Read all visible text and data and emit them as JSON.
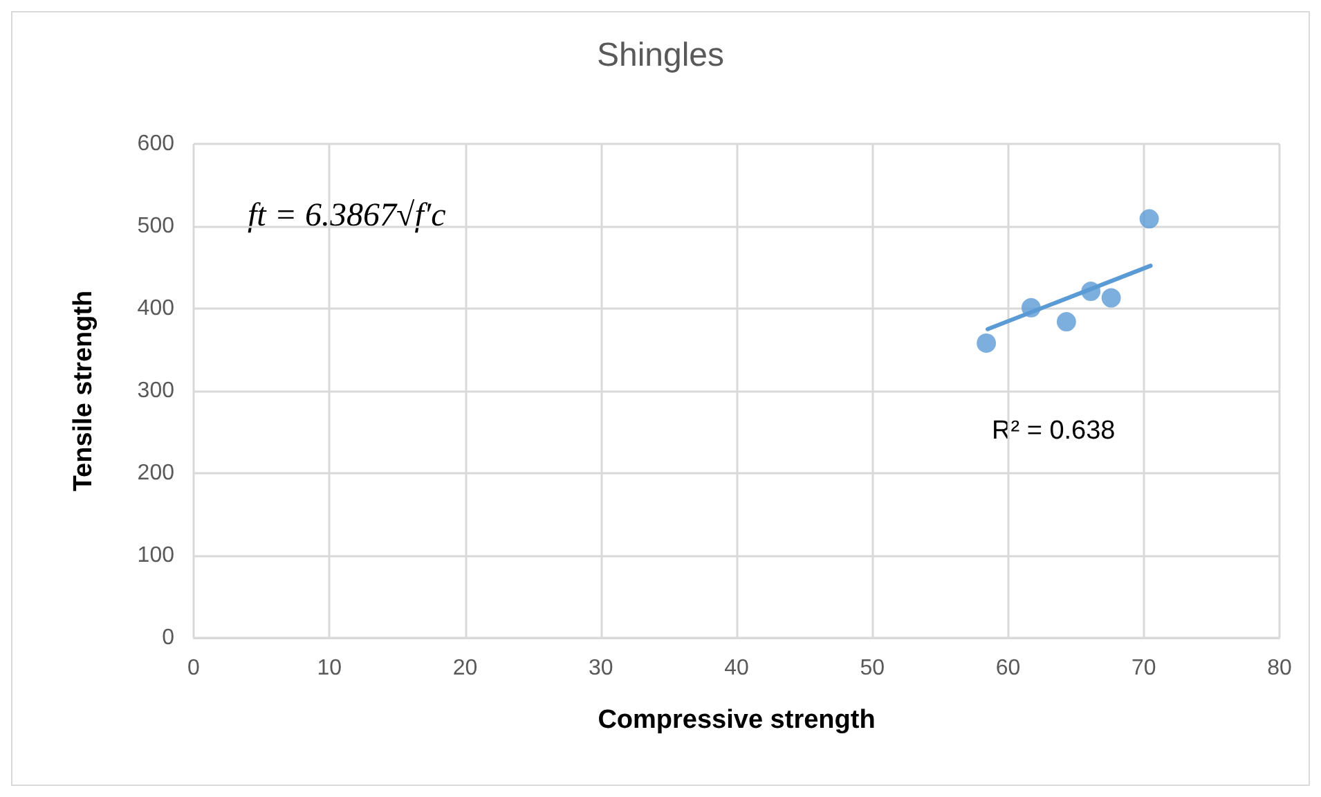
{
  "chart_data": {
    "type": "scatter",
    "title": "Shingles",
    "xlabel": "Compressive strength",
    "ylabel": "Tensile strength",
    "xlim": [
      0,
      80
    ],
    "xticks": [
      0,
      10,
      20,
      30,
      40,
      50,
      60,
      70,
      80
    ],
    "ylim": [
      0,
      600
    ],
    "yticks": [
      0,
      100,
      200,
      300,
      400,
      500,
      600
    ],
    "grid": true,
    "marker": "circle",
    "series": [
      {
        "color": "#5b9bd5",
        "x": [
          58.4,
          61.7,
          64.3,
          66.1,
          67.6,
          70.4
        ],
        "values": [
          358,
          401,
          384,
          421,
          413,
          509
        ]
      },
      {
        "type": "line",
        "color": "#5b9bd5",
        "marker": "none",
        "line_style": "solid",
        "x": [
          58.5,
          70.5
        ],
        "values": [
          375,
          452
        ]
      }
    ],
    "annotations": [
      "ft = 6.3867√f′c",
      "R² = 0.638"
    ]
  }
}
